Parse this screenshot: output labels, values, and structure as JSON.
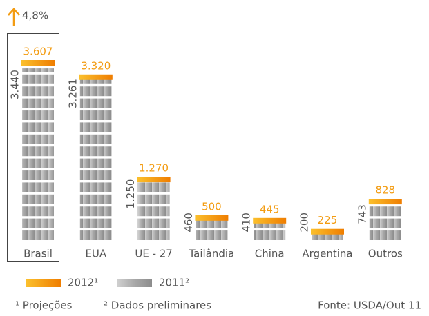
{
  "chart_data": {
    "type": "bar",
    "annotation": "4,8%",
    "categories": [
      "Brasil",
      "EUA",
      "UE - 27",
      "Tailândia",
      "China",
      "Argentina",
      "Outros"
    ],
    "series": [
      {
        "name": "2012¹",
        "color": "#f39c12",
        "values": [
          3607,
          3320,
          1270,
          500,
          445,
          225,
          828
        ],
        "value_labels": [
          "3.607",
          "3.320",
          "1.270",
          "500",
          "445",
          "225",
          "828"
        ]
      },
      {
        "name": "2011²",
        "color": "#a6a6a6",
        "values": [
          3440,
          3261,
          1250,
          460,
          410,
          200,
          743
        ],
        "value_labels": [
          "3.440",
          "3.261",
          "1.250",
          "460",
          "410",
          "200",
          "743"
        ]
      }
    ],
    "footnotes": [
      "¹ Projeções",
      "² Dados preliminares"
    ],
    "source": "Fonte: USDA/Out 11"
  }
}
